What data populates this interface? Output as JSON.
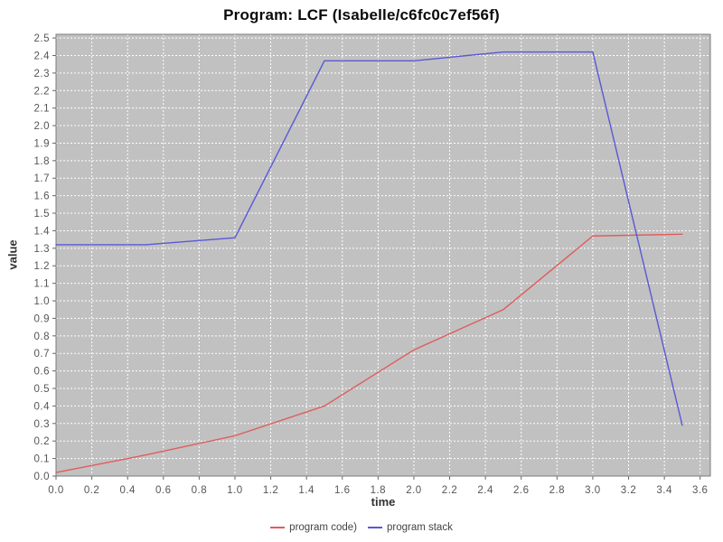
{
  "chart_data": {
    "type": "line",
    "title": "Program: LCF (Isabelle/c6fc0c7ef56f)",
    "xlabel": "time",
    "ylabel": "value",
    "x": [
      0.0,
      0.5,
      1.0,
      1.5,
      2.0,
      2.5,
      3.0,
      3.5
    ],
    "series": [
      {
        "name": "program code)",
        "color": "#e05c5c",
        "values": [
          0.02,
          0.12,
          0.23,
          0.4,
          0.72,
          0.95,
          1.37,
          1.38
        ]
      },
      {
        "name": "program stack",
        "color": "#5858d8",
        "values": [
          1.32,
          1.32,
          1.36,
          2.37,
          2.37,
          2.42,
          2.42,
          0.29
        ]
      }
    ],
    "xlim": [
      0.0,
      3.657
    ],
    "ylim": [
      0.0,
      2.521
    ],
    "x_ticks": [
      0.0,
      0.2,
      0.4,
      0.6,
      0.8,
      1.0,
      1.2,
      1.4,
      1.6,
      1.8,
      2.0,
      2.2,
      2.4,
      2.6,
      2.8,
      3.0,
      3.2,
      3.4,
      3.6
    ],
    "y_ticks": [
      0.0,
      0.1,
      0.2,
      0.3,
      0.4,
      0.5,
      0.6,
      0.7,
      0.8,
      0.9,
      1.0,
      1.1,
      1.2,
      1.3,
      1.4,
      1.5,
      1.6,
      1.7,
      1.8,
      1.9,
      2.0,
      2.1,
      2.2,
      2.3,
      2.4,
      2.5
    ],
    "grid": true,
    "legend_position": "bottom",
    "colors": {
      "page_bg": "#ffffff",
      "plot_bg": "#c1c1c1",
      "grid": "#ffffff",
      "border": "#7a7a7a",
      "tick_mark": "#666666",
      "tick_label": "#555555",
      "axis_label": "#333333",
      "title": "#0a0a0a",
      "legend_text": "#444444"
    }
  }
}
